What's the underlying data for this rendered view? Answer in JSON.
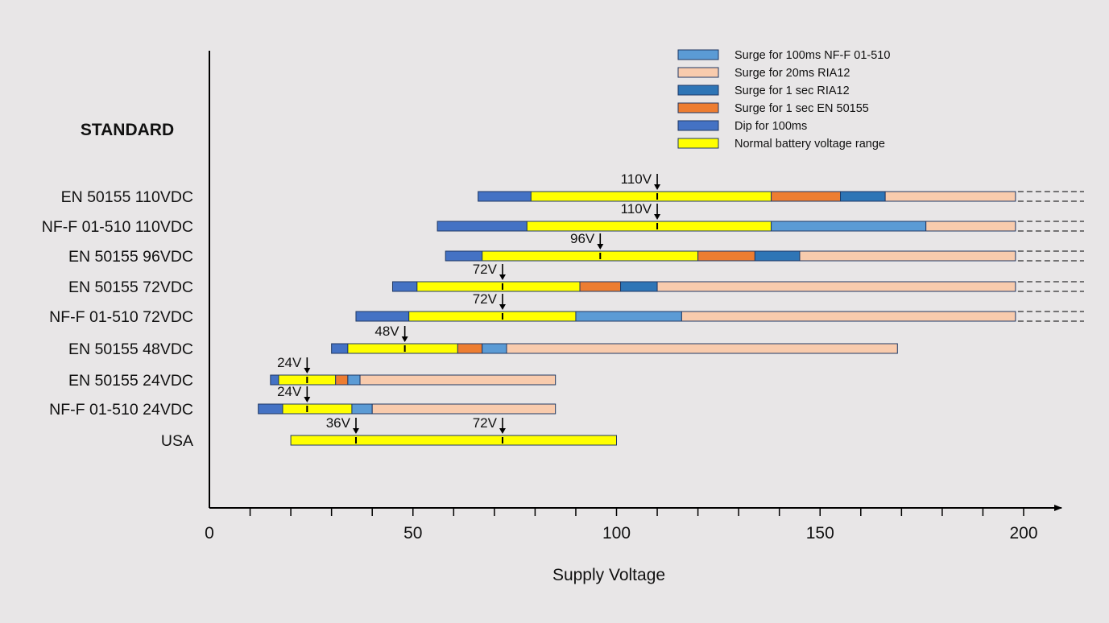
{
  "chart_data": {
    "type": "bar",
    "orientation": "horizontal-range",
    "title": "",
    "row_axis_title": "STANDARD",
    "xlabel": "Supply Voltage",
    "xlim": [
      0,
      210
    ],
    "xticks": [
      0,
      50,
      100,
      150,
      200
    ],
    "grid": false,
    "legend_position": "top-right",
    "segment_types": [
      {
        "key": "surge100nf",
        "label": "Surge for 100ms NF-F 01-510",
        "color": "#5b9bd5"
      },
      {
        "key": "surge20ria",
        "label": "Surge for 20ms RIA12",
        "color": "#f8cbad"
      },
      {
        "key": "surge1ria",
        "label": "Surge for 1 sec RIA12",
        "color": "#2e75b6"
      },
      {
        "key": "surge1en",
        "label": "Surge for 1 sec EN 50155",
        "color": "#ed7d31"
      },
      {
        "key": "dip100",
        "label": "Dip for 100ms",
        "color": "#4472c4"
      },
      {
        "key": "normal",
        "label": "Normal battery voltage range",
        "color": "#ffff00"
      }
    ],
    "rows": [
      {
        "name": "EN 50155 110VDC",
        "nominal_labels": [
          {
            "text": "110V",
            "value": 110
          }
        ],
        "continues": true,
        "segments": [
          {
            "type": "dip100",
            "from": 66,
            "to": 79
          },
          {
            "type": "normal",
            "from": 79,
            "to": 138
          },
          {
            "type": "surge1en",
            "from": 138,
            "to": 155
          },
          {
            "type": "surge1ria",
            "from": 155,
            "to": 166
          },
          {
            "type": "surge20ria",
            "from": 166,
            "to": 198
          }
        ]
      },
      {
        "name": "NF-F 01-510 110VDC",
        "nominal_labels": [
          {
            "text": "110V",
            "value": 110
          }
        ],
        "continues": true,
        "segments": [
          {
            "type": "dip100",
            "from": 56,
            "to": 78
          },
          {
            "type": "normal",
            "from": 78,
            "to": 138
          },
          {
            "type": "surge100nf",
            "from": 138,
            "to": 176
          },
          {
            "type": "surge20ria",
            "from": 176,
            "to": 198
          }
        ]
      },
      {
        "name": "EN 50155 96VDC",
        "nominal_labels": [
          {
            "text": "96V",
            "value": 96
          }
        ],
        "continues": true,
        "segments": [
          {
            "type": "dip100",
            "from": 58,
            "to": 67
          },
          {
            "type": "normal",
            "from": 67,
            "to": 120
          },
          {
            "type": "surge1en",
            "from": 120,
            "to": 134
          },
          {
            "type": "surge1ria",
            "from": 134,
            "to": 145
          },
          {
            "type": "surge20ria",
            "from": 145,
            "to": 198
          }
        ]
      },
      {
        "name": "EN 50155 72VDC",
        "nominal_labels": [
          {
            "text": "72V",
            "value": 72
          }
        ],
        "continues": true,
        "segments": [
          {
            "type": "dip100",
            "from": 45,
            "to": 51
          },
          {
            "type": "normal",
            "from": 51,
            "to": 91
          },
          {
            "type": "surge1en",
            "from": 91,
            "to": 101
          },
          {
            "type": "surge1ria",
            "from": 101,
            "to": 110
          },
          {
            "type": "surge20ria",
            "from": 110,
            "to": 198
          }
        ]
      },
      {
        "name": "NF-F 01-510 72VDC",
        "nominal_labels": [
          {
            "text": "72V",
            "value": 72
          }
        ],
        "continues": true,
        "segments": [
          {
            "type": "dip100",
            "from": 36,
            "to": 49
          },
          {
            "type": "normal",
            "from": 49,
            "to": 90
          },
          {
            "type": "surge100nf",
            "from": 90,
            "to": 116
          },
          {
            "type": "surge20ria",
            "from": 116,
            "to": 198
          }
        ]
      },
      {
        "name": "EN 50155 48VDC",
        "nominal_labels": [
          {
            "text": "48V",
            "value": 48
          }
        ],
        "continues": false,
        "segments": [
          {
            "type": "dip100",
            "from": 30,
            "to": 34
          },
          {
            "type": "normal",
            "from": 34,
            "to": 61
          },
          {
            "type": "surge1en",
            "from": 61,
            "to": 67
          },
          {
            "type": "surge100nf",
            "from": 67,
            "to": 73
          },
          {
            "type": "surge20ria",
            "from": 73,
            "to": 169
          }
        ]
      },
      {
        "name": "EN 50155 24VDC",
        "nominal_labels": [
          {
            "text": "24V",
            "value": 24
          }
        ],
        "continues": false,
        "segments": [
          {
            "type": "dip100",
            "from": 15,
            "to": 17
          },
          {
            "type": "normal",
            "from": 17,
            "to": 31
          },
          {
            "type": "surge1en",
            "from": 31,
            "to": 34
          },
          {
            "type": "surge100nf",
            "from": 34,
            "to": 37
          },
          {
            "type": "surge20ria",
            "from": 37,
            "to": 85
          }
        ]
      },
      {
        "name": "NF-F 01-510 24VDC",
        "nominal_labels": [
          {
            "text": "24V",
            "value": 24
          }
        ],
        "continues": false,
        "segments": [
          {
            "type": "dip100",
            "from": 12,
            "to": 18
          },
          {
            "type": "normal",
            "from": 18,
            "to": 35
          },
          {
            "type": "surge100nf",
            "from": 35,
            "to": 40
          },
          {
            "type": "surge20ria",
            "from": 40,
            "to": 85
          }
        ]
      },
      {
        "name": "USA",
        "nominal_labels": [
          {
            "text": "36V",
            "value": 36
          },
          {
            "text": "72V",
            "value": 72
          }
        ],
        "continues": false,
        "segments": [
          {
            "type": "normal",
            "from": 20,
            "to": 100
          }
        ]
      }
    ]
  }
}
